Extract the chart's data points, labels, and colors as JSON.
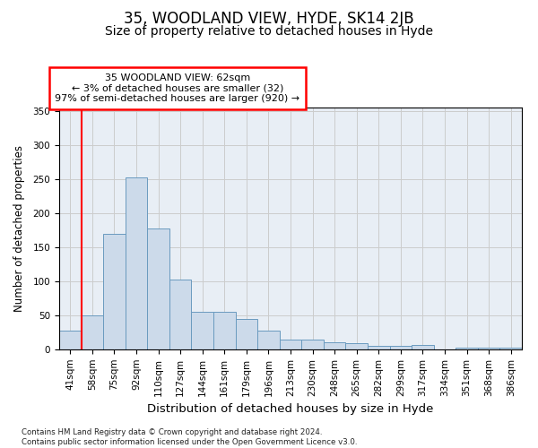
{
  "title": "35, WOODLAND VIEW, HYDE, SK14 2JB",
  "subtitle": "Size of property relative to detached houses in Hyde",
  "xlabel": "Distribution of detached houses by size in Hyde",
  "ylabel": "Number of detached properties",
  "categories": [
    "41sqm",
    "58sqm",
    "75sqm",
    "92sqm",
    "110sqm",
    "127sqm",
    "144sqm",
    "161sqm",
    "179sqm",
    "196sqm",
    "213sqm",
    "230sqm",
    "248sqm",
    "265sqm",
    "282sqm",
    "299sqm",
    "317sqm",
    "334sqm",
    "351sqm",
    "368sqm",
    "386sqm"
  ],
  "values": [
    27,
    50,
    170,
    252,
    178,
    102,
    55,
    55,
    45,
    27,
    15,
    15,
    10,
    9,
    5,
    5,
    7,
    0,
    2,
    3,
    3
  ],
  "bar_color": "#ccdaea",
  "bar_edge_color": "#6a9abf",
  "red_line_index": 1,
  "annotation_text": "35 WOODLAND VIEW: 62sqm\n← 3% of detached houses are smaller (32)\n97% of semi-detached houses are larger (920) →",
  "annotation_box_color": "white",
  "annotation_box_edge": "red",
  "ylim": [
    0,
    355
  ],
  "yticks": [
    0,
    50,
    100,
    150,
    200,
    250,
    300,
    350
  ],
  "grid_color": "#cccccc",
  "bg_color": "#e8eef5",
  "footer": "Contains HM Land Registry data © Crown copyright and database right 2024.\nContains public sector information licensed under the Open Government Licence v3.0.",
  "title_fontsize": 12,
  "subtitle_fontsize": 10,
  "xlabel_fontsize": 9.5,
  "ylabel_fontsize": 8.5,
  "tick_fontsize": 7.5,
  "annotation_fontsize": 8
}
